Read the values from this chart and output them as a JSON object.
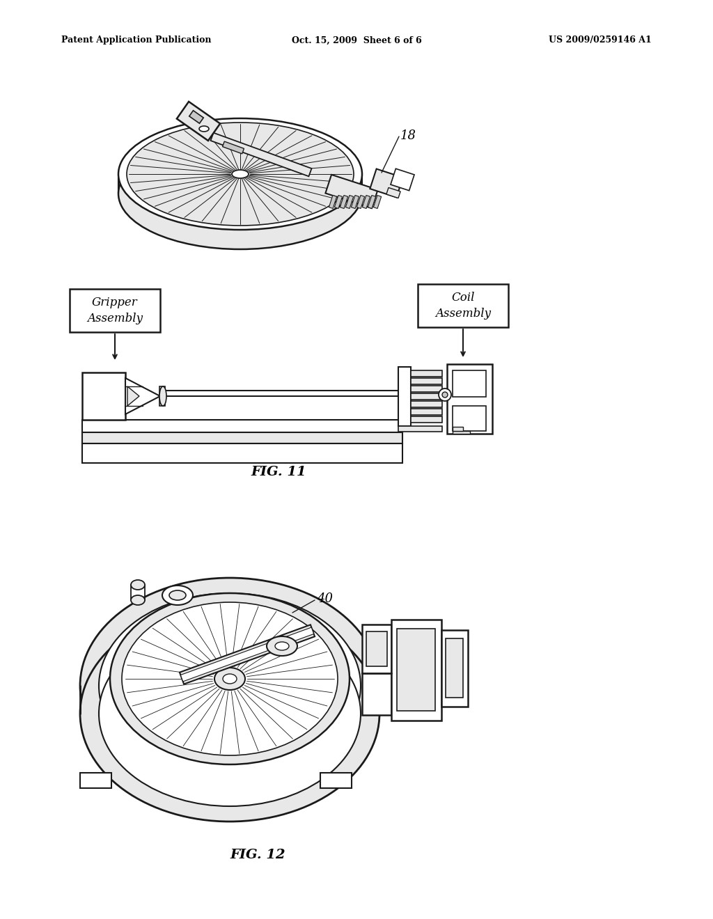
{
  "background_color": "#ffffff",
  "header_left": "Patent Application Publication",
  "header_center": "Oct. 15, 2009  Sheet 6 of 6",
  "header_right": "US 2009/0259146 A1",
  "fig11_label": "FIG. 11",
  "fig12_label": "FIG. 12",
  "label_18": "18",
  "label_40": "40",
  "gripper_text": "Gripper\nAssembly",
  "coil_text": "Coil\nAssembly",
  "lc": "#1a1a1a",
  "fw": "#ffffff",
  "fg": "#e8e8e8",
  "fd": "#c8c8c8"
}
